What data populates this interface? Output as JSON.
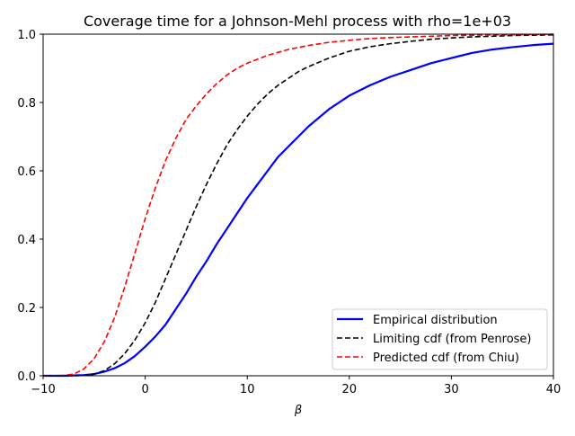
{
  "chart_data": {
    "type": "line",
    "title": "Coverage time for a Johnson-Mehl process with rho=1e+03",
    "xlabel": "β",
    "ylabel": "",
    "xlim": [
      -10,
      40
    ],
    "ylim": [
      0,
      1
    ],
    "xticks": [
      "−10",
      "0",
      "10",
      "20",
      "30",
      "40"
    ],
    "yticks": [
      "0.0",
      "0.2",
      "0.4",
      "0.6",
      "0.8",
      "1.0"
    ],
    "grid": false,
    "legend_position": "lower-right",
    "series": [
      {
        "name": "Empirical distribution",
        "color": "#0000ff",
        "style": "solid",
        "x": [
          -10,
          -8,
          -6,
          -5,
          -4,
          -3,
          -2,
          -1,
          0,
          1,
          2,
          3,
          4,
          5,
          6,
          7,
          8,
          9,
          10,
          11,
          12,
          13,
          14,
          15,
          16,
          18,
          20,
          22,
          24,
          26,
          28,
          30,
          32,
          34,
          36,
          38,
          40
        ],
        "y": [
          0.0,
          0.0,
          0.002,
          0.005,
          0.012,
          0.022,
          0.037,
          0.058,
          0.085,
          0.115,
          0.15,
          0.195,
          0.24,
          0.29,
          0.335,
          0.385,
          0.43,
          0.475,
          0.52,
          0.56,
          0.6,
          0.64,
          0.67,
          0.7,
          0.73,
          0.78,
          0.82,
          0.85,
          0.875,
          0.895,
          0.915,
          0.93,
          0.945,
          0.955,
          0.962,
          0.968,
          0.972
        ]
      },
      {
        "name": "Limiting cdf (from Penrose)",
        "color": "#000000",
        "style": "dashed",
        "x": [
          -10,
          -8,
          -6,
          -5,
          -4,
          -3,
          -2,
          -1,
          0,
          1,
          2,
          3,
          4,
          5,
          6,
          7,
          8,
          9,
          10,
          11,
          12,
          13,
          14,
          15,
          16,
          18,
          20,
          22,
          24,
          26,
          28,
          30,
          32,
          34,
          36,
          38,
          40
        ],
        "y": [
          0.0,
          0.0,
          0.001,
          0.005,
          0.015,
          0.035,
          0.065,
          0.105,
          0.155,
          0.215,
          0.285,
          0.355,
          0.425,
          0.495,
          0.56,
          0.62,
          0.675,
          0.72,
          0.76,
          0.795,
          0.825,
          0.85,
          0.87,
          0.89,
          0.905,
          0.93,
          0.95,
          0.963,
          0.972,
          0.979,
          0.985,
          0.989,
          0.992,
          0.994,
          0.996,
          0.997,
          0.998
        ]
      },
      {
        "name": "Predicted cdf (from Chiu)",
        "color": "#ff0000",
        "style": "dashed",
        "x": [
          -10,
          -8,
          -7,
          -6,
          -5,
          -4,
          -3,
          -2,
          -1,
          0,
          1,
          2,
          3,
          4,
          5,
          6,
          7,
          8,
          9,
          10,
          12,
          14,
          16,
          18,
          20,
          22,
          24,
          26,
          28,
          30,
          32,
          34,
          36,
          38,
          40
        ],
        "y": [
          0.0,
          0.001,
          0.005,
          0.02,
          0.05,
          0.1,
          0.17,
          0.26,
          0.36,
          0.46,
          0.55,
          0.63,
          0.695,
          0.75,
          0.79,
          0.825,
          0.855,
          0.88,
          0.9,
          0.915,
          0.938,
          0.955,
          0.967,
          0.976,
          0.982,
          0.987,
          0.99,
          0.992,
          0.994,
          0.996,
          0.997,
          0.998,
          0.998,
          0.999,
          1.0
        ]
      }
    ]
  }
}
